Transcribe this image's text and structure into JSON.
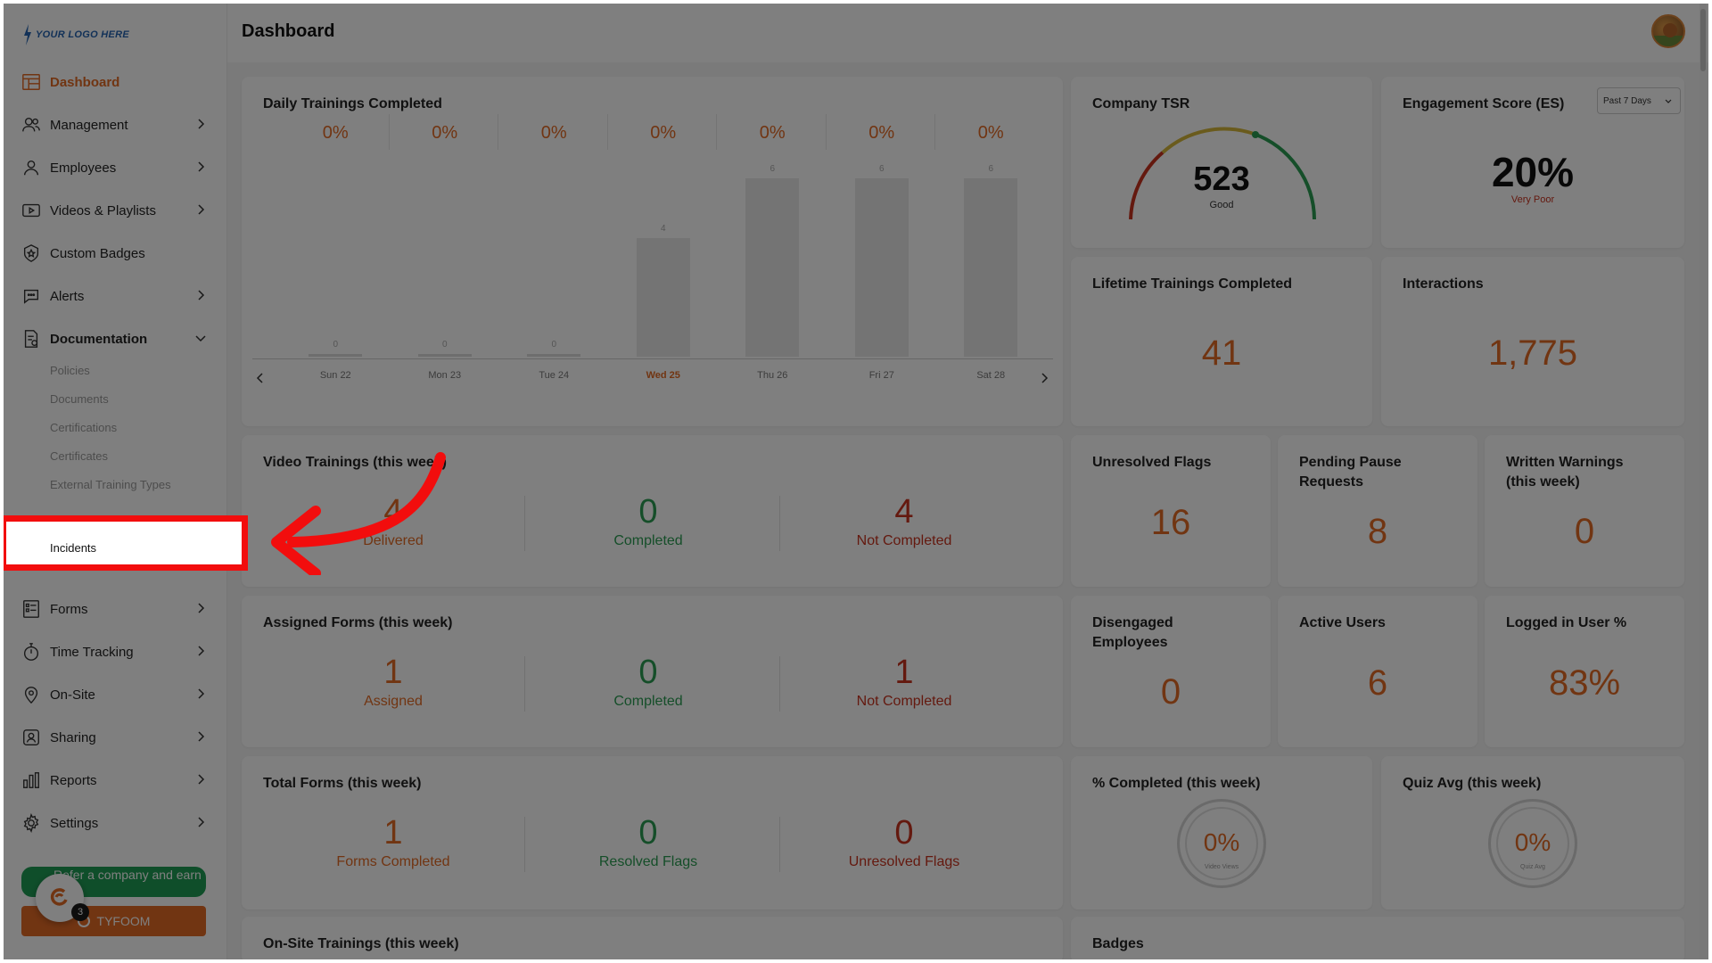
{
  "logo": {
    "text": "YOUR LOGO HERE"
  },
  "header": {
    "title": "Dashboard"
  },
  "sidebar": {
    "items": [
      {
        "label": "Dashboard",
        "icon": "dashboard-icon"
      },
      {
        "label": "Management",
        "icon": "users-icon"
      },
      {
        "label": "Employees",
        "icon": "user-icon"
      },
      {
        "label": "Videos & Playlists",
        "icon": "video-icon"
      },
      {
        "label": "Custom Badges",
        "icon": "badge-icon"
      },
      {
        "label": "Alerts",
        "icon": "alert-icon"
      },
      {
        "label": "Documentation",
        "icon": "document-icon"
      },
      {
        "label": "Forms",
        "icon": "form-icon"
      },
      {
        "label": "Time Tracking",
        "icon": "stopwatch-icon"
      },
      {
        "label": "On-Site",
        "icon": "location-icon"
      },
      {
        "label": "Sharing",
        "icon": "share-icon"
      },
      {
        "label": "Reports",
        "icon": "reports-icon"
      },
      {
        "label": "Settings",
        "icon": "gear-icon"
      }
    ],
    "subitems": [
      "Policies",
      "Documents",
      "Certifications",
      "Certificates",
      "External Training Types",
      "Incidents"
    ],
    "refer_label": "Refer a company and earn $",
    "tyfoom_label": "TYFOOM",
    "chat_count": "3"
  },
  "daily": {
    "title": "Daily Trainings Completed",
    "days": [
      {
        "day": "Sun 22",
        "pct": "0%",
        "count": "0",
        "value": 0
      },
      {
        "day": "Mon 23",
        "pct": "0%",
        "count": "0",
        "value": 0
      },
      {
        "day": "Tue 24",
        "pct": "0%",
        "count": "0",
        "value": 0
      },
      {
        "day": "Wed 25",
        "pct": "0%",
        "count": "4",
        "value": 4
      },
      {
        "day": "Thu 26",
        "pct": "0%",
        "count": "6",
        "value": 6
      },
      {
        "day": "Fri 27",
        "pct": "0%",
        "count": "6",
        "value": 6
      },
      {
        "day": "Sat 28",
        "pct": "0%",
        "count": "6",
        "value": 6
      }
    ]
  },
  "tsr": {
    "title": "Company TSR",
    "value": "523",
    "label": "Good"
  },
  "es": {
    "title": "Engagement Score (ES)",
    "value": "20%",
    "label": "Very Poor",
    "range": "Past 7 Days"
  },
  "lifetime": {
    "title": "Lifetime Trainings Completed",
    "value": "41"
  },
  "interactions": {
    "title": "Interactions",
    "value": "1,775"
  },
  "video": {
    "title": "Video Trainings (this week)",
    "delivered": "4",
    "delivered_lbl": "Delivered",
    "completed": "0",
    "completed_lbl": "Completed",
    "not": "4",
    "not_lbl": "Not Completed"
  },
  "flags": {
    "title": "Unresolved Flags",
    "value": "16"
  },
  "pause": {
    "title": "Pending Pause Requests",
    "value": "8"
  },
  "warnings": {
    "title": "Written Warnings (this week)",
    "value": "0"
  },
  "assigned": {
    "title": "Assigned Forms (this week)",
    "a": "1",
    "a_lbl": "Assigned",
    "c": "0",
    "c_lbl": "Completed",
    "n": "1",
    "n_lbl": "Not Completed"
  },
  "disengaged": {
    "title": "Disengaged Employees",
    "value": "0"
  },
  "active": {
    "title": "Active Users",
    "value": "6"
  },
  "loggedin": {
    "title": "Logged in User %",
    "value": "83%"
  },
  "total": {
    "title": "Total Forms (this week)",
    "a": "1",
    "a_lbl": "Forms Completed",
    "c": "0",
    "c_lbl": "Resolved Flags",
    "n": "0",
    "n_lbl": "Unresolved Flags"
  },
  "pctcomp": {
    "title": "% Completed (this week)",
    "value": "0%",
    "sub": "Video Views"
  },
  "quiz": {
    "title": "Quiz Avg (this week)",
    "value": "0%",
    "sub": "Quiz Avg"
  },
  "onsite": {
    "title": "On-Site Trainings (this week)"
  },
  "badges": {
    "title": "Badges"
  },
  "colors": {
    "accent": "#e36a25",
    "green": "#2a9d52",
    "red": "#c8321e",
    "highlight": "#f20d0d"
  }
}
